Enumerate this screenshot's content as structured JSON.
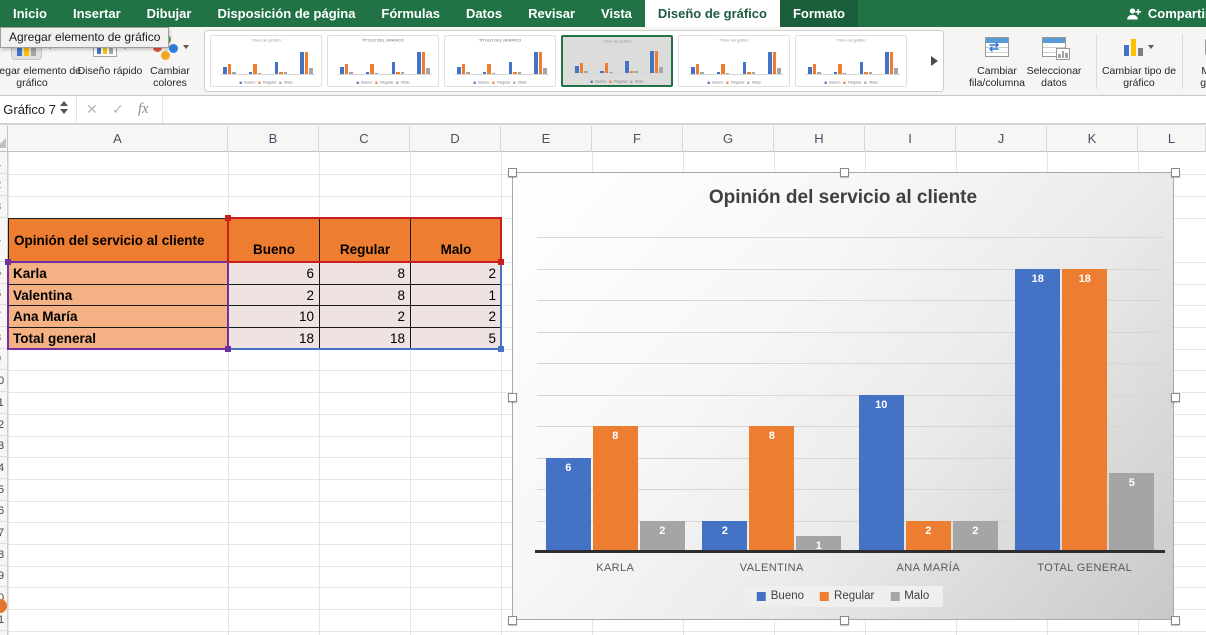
{
  "tab_bar": {
    "tabs": [
      {
        "label": "Inicio"
      },
      {
        "label": "Insertar"
      },
      {
        "label": "Dibujar"
      },
      {
        "label": "Disposición de página"
      },
      {
        "label": "Fórmulas"
      },
      {
        "label": "Datos"
      },
      {
        "label": "Revisar"
      },
      {
        "label": "Vista"
      },
      {
        "label": "Diseño de gráfico",
        "active": true
      },
      {
        "label": "Formato",
        "contextual": true
      }
    ],
    "share_label": "Compartir"
  },
  "tooltip": {
    "text": "Agregar elemento de gráfico"
  },
  "ribbon": {
    "add_chart_element_label": "Agregar elemento de gráfico",
    "quick_layout_label": "Diseño rápido",
    "change_colors_label": "Cambiar colores",
    "switch_row_column_label": "Cambiar fila/columna",
    "select_data_label": "Seleccionar datos",
    "change_chart_type_label": "Cambiar tipo de gráfico",
    "move_chart_label": "Mover gráfico",
    "style_gallery": {
      "selected_index": 3,
      "thumbs": [
        {
          "title": "Título del gráfico"
        },
        {
          "title": "TÍTULO DEL GRÁFICO"
        },
        {
          "title": "TÍTULO DEL GRÁFICO"
        },
        {
          "title": "Título del gráfico"
        },
        {
          "title": "Título del gráfico"
        },
        {
          "title": "Título del gráfico"
        }
      ]
    }
  },
  "formula_bar": {
    "name_box": "Gráfico 7",
    "fx_label": "fx"
  },
  "sheet": {
    "columns": [
      "A",
      "B",
      "C",
      "D",
      "E",
      "F",
      "G",
      "H",
      "I",
      "J",
      "K",
      "L"
    ],
    "visible_rows": 22,
    "table": {
      "title_cell": "Opinión del servicio al cliente",
      "column_headers": [
        "Bueno",
        "Regular",
        "Malo"
      ],
      "rows": [
        {
          "label": "Karla",
          "values": [
            6,
            8,
            2
          ]
        },
        {
          "label": "Valentina",
          "values": [
            2,
            8,
            1
          ]
        },
        {
          "label": "Ana María",
          "values": [
            10,
            2,
            2
          ]
        },
        {
          "label": "Total general",
          "values": [
            18,
            18,
            5
          ]
        }
      ]
    }
  },
  "chart_data": {
    "type": "bar",
    "title": "Opinión del servicio al cliente",
    "categories": [
      "KARLA",
      "VALENTINA",
      "ANA MARÍA",
      "TOTAL GENERAL"
    ],
    "series": [
      {
        "name": "Bueno",
        "color": "#4472C4",
        "values": [
          6,
          2,
          10,
          18
        ]
      },
      {
        "name": "Regular",
        "color": "#ED7D31",
        "values": [
          8,
          8,
          2,
          18
        ]
      },
      {
        "name": "Malo",
        "color": "#A5A5A5",
        "values": [
          2,
          1,
          2,
          5
        ]
      }
    ],
    "ylim": [
      0,
      20
    ],
    "gridline_step": 2,
    "grid": true,
    "y_axis_labels": false,
    "data_labels": "inside-end",
    "legend_position": "bottom"
  },
  "colors": {
    "excel_green": "#217346",
    "contextual_tab_green": "#1B5E3C",
    "series_blue": "#4472C4",
    "series_orange": "#ED7D31",
    "series_gray": "#A5A5A5",
    "table_header_fill": "#ED7D31",
    "table_label_fill": "#F4B183",
    "table_value_fill": "#EFE3E1",
    "selection_red": "#C81E1E",
    "selection_purple": "#7030A0",
    "selection_blue": "#4472C4"
  }
}
